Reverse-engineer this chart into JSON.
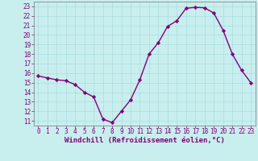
{
  "x": [
    0,
    1,
    2,
    3,
    4,
    5,
    6,
    7,
    8,
    9,
    10,
    11,
    12,
    13,
    14,
    15,
    16,
    17,
    18,
    19,
    20,
    21,
    22,
    23
  ],
  "y": [
    15.7,
    15.5,
    15.3,
    15.2,
    14.8,
    14.0,
    13.5,
    11.2,
    10.8,
    12.0,
    13.2,
    15.3,
    18.0,
    19.2,
    20.9,
    21.5,
    22.8,
    22.9,
    22.85,
    22.3,
    20.5,
    18.0,
    16.3,
    15.0
  ],
  "line_color": "#800080",
  "marker": "D",
  "marker_size": 2.2,
  "line_width": 1.0,
  "bg_color": "#C8EEEE",
  "grid_color": "#AADDDD",
  "xlabel": "Windchill (Refroidissement éolien,°C)",
  "xlabel_color": "#800080",
  "xlabel_fontsize": 6.5,
  "tick_color": "#800080",
  "tick_fontsize": 5.5,
  "ylim": [
    10.5,
    23.5
  ],
  "xlim": [
    -0.5,
    23.5
  ],
  "xtick_labels": [
    "0",
    "1",
    "2",
    "3",
    "4",
    "5",
    "6",
    "7",
    "8",
    "9",
    "10",
    "11",
    "12",
    "13",
    "14",
    "15",
    "16",
    "17",
    "18",
    "19",
    "20",
    "21",
    "22",
    "23"
  ]
}
